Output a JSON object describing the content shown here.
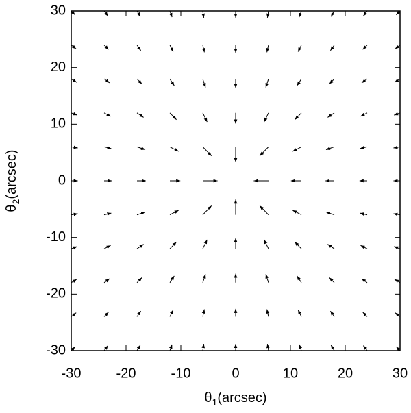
{
  "chart_data": {
    "type": "quiver",
    "x_label": {
      "symbol": "θ",
      "subscript": "1",
      "unit": "(arcsec)"
    },
    "y_label": {
      "symbol": "θ",
      "subscript": "2",
      "unit": "(arcsec)"
    },
    "xlim": [
      -30,
      30
    ],
    "ylim": [
      -30,
      30
    ],
    "xticks": [
      -30,
      -20,
      -10,
      0,
      10,
      20,
      30
    ],
    "yticks": [
      -30,
      -20,
      -10,
      0,
      10,
      20,
      30
    ],
    "color": "#000000",
    "x": [
      -30,
      -24,
      -18,
      -12,
      -6,
      0,
      6,
      12,
      18,
      24,
      30
    ],
    "y": [
      -30,
      -24,
      -18,
      -12,
      -6,
      0,
      6,
      12,
      18,
      24,
      30
    ],
    "u": [
      [
        0.7,
        0.7,
        0.6,
        0.4,
        0.2,
        0,
        -0.2,
        -0.4,
        -0.6,
        -0.7,
        -0.7
      ],
      [
        0.9,
        0.8,
        0.7,
        0.6,
        0.3,
        0,
        -0.3,
        -0.6,
        -0.7,
        -0.8,
        -0.9
      ],
      [
        1.0,
        1.0,
        0.9,
        0.8,
        0.5,
        0,
        -0.5,
        -0.8,
        -0.9,
        -1.0,
        -1.0
      ],
      [
        1.1,
        1.2,
        1.2,
        1.2,
        0.8,
        0,
        -0.8,
        -1.2,
        -1.2,
        -1.2,
        -1.1
      ],
      [
        1.2,
        1.3,
        1.5,
        1.6,
        1.6,
        0,
        -1.6,
        -1.6,
        -1.5,
        -1.3,
        -1.2
      ],
      [
        1.2,
        1.4,
        1.6,
        1.9,
        2.7,
        0,
        -2.7,
        -1.9,
        -1.6,
        -1.4,
        -1.2
      ],
      [
        1.2,
        1.3,
        1.5,
        1.6,
        1.6,
        0,
        -1.6,
        -1.6,
        -1.5,
        -1.3,
        -1.2
      ],
      [
        1.1,
        1.2,
        1.2,
        1.2,
        0.8,
        0,
        -0.8,
        -1.2,
        -1.2,
        -1.2,
        -1.1
      ],
      [
        1.0,
        1.0,
        0.9,
        0.8,
        0.5,
        0,
        -0.5,
        -0.8,
        -0.9,
        -1.0,
        -1.0
      ],
      [
        0.9,
        0.8,
        0.7,
        0.6,
        0.3,
        0,
        -0.3,
        -0.6,
        -0.7,
        -0.8,
        -0.9
      ],
      [
        0.7,
        0.7,
        0.6,
        0.4,
        0.2,
        0,
        -0.2,
        -0.4,
        -0.6,
        -0.7,
        -0.7
      ]
    ],
    "v": [
      [
        0.7,
        0.9,
        1.0,
        1.1,
        1.2,
        1.2,
        1.2,
        1.1,
        1.0,
        0.9,
        0.7
      ],
      [
        0.7,
        0.8,
        1.0,
        1.2,
        1.3,
        1.4,
        1.3,
        1.2,
        1.0,
        0.8,
        0.7
      ],
      [
        0.6,
        0.7,
        0.9,
        1.2,
        1.5,
        1.6,
        1.5,
        1.2,
        0.9,
        0.7,
        0.6
      ],
      [
        0.4,
        0.6,
        0.8,
        1.2,
        1.6,
        1.9,
        1.6,
        1.2,
        0.8,
        0.6,
        0.4
      ],
      [
        0.2,
        0.3,
        0.5,
        0.8,
        1.6,
        2.7,
        1.6,
        0.8,
        0.5,
        0.3,
        0.2
      ],
      [
        0,
        0,
        0,
        0,
        0,
        0,
        0,
        0,
        0,
        0,
        0
      ],
      [
        -0.2,
        -0.3,
        -0.5,
        -0.8,
        -1.6,
        -2.7,
        -1.6,
        -0.8,
        -0.5,
        -0.3,
        -0.2
      ],
      [
        -0.4,
        -0.6,
        -0.8,
        -1.2,
        -1.6,
        -1.9,
        -1.6,
        -1.2,
        -0.8,
        -0.6,
        -0.4
      ],
      [
        -0.6,
        -0.7,
        -0.9,
        -1.2,
        -1.5,
        -1.6,
        -1.5,
        -1.2,
        -0.9,
        -0.7,
        -0.6
      ],
      [
        -0.7,
        -0.8,
        -1.0,
        -1.2,
        -1.3,
        -1.4,
        -1.3,
        -1.2,
        -1.0,
        -0.8,
        -0.7
      ],
      [
        -0.7,
        -0.9,
        -1.0,
        -1.1,
        -1.2,
        -1.2,
        -1.2,
        -1.1,
        -1.0,
        -0.9,
        -0.7
      ]
    ]
  }
}
